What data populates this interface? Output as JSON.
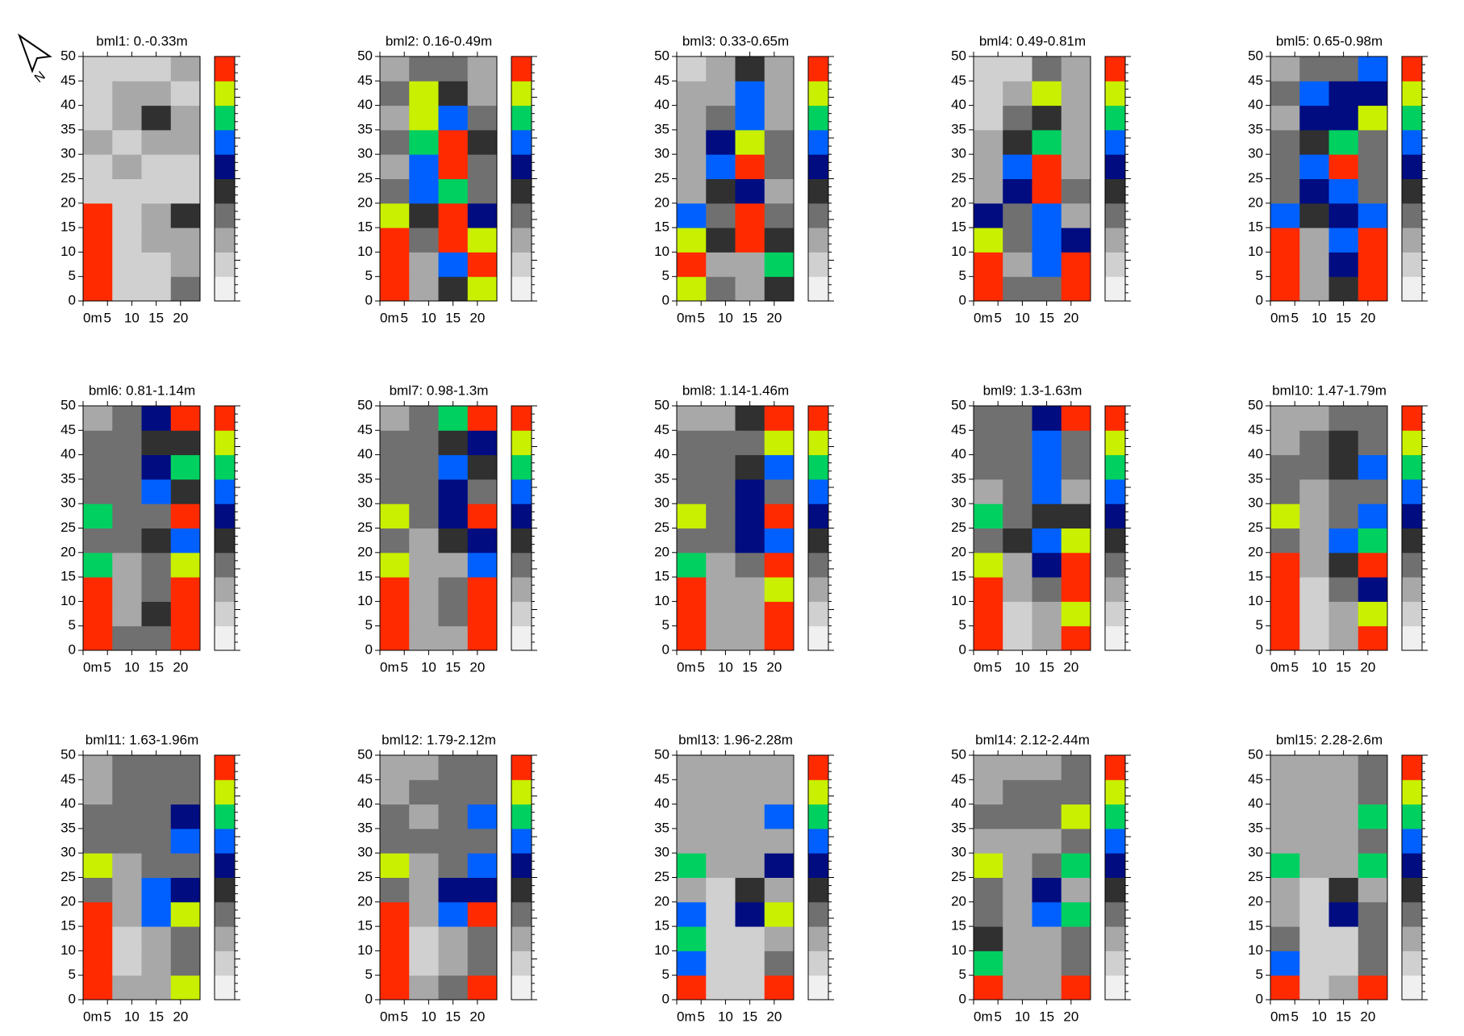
{
  "north_label": "N",
  "colorscale": [
    "#f0f0f0",
    "#d0d0d0",
    "#a8a8a8",
    "#707070",
    "#303030",
    "#000c80",
    "#0060ff",
    "#00d060",
    "#c8f000",
    "#ff2a00"
  ],
  "chart_data": [
    {
      "type": "heatmap",
      "title": "bml1: 0.-0.33m",
      "xlim": [
        0,
        24
      ],
      "ylim": [
        0,
        50
      ],
      "xticks": [
        {
          "value": 0,
          "label": "0m"
        },
        5,
        10,
        15,
        20
      ],
      "yticks": [
        0,
        5,
        10,
        15,
        20,
        25,
        30,
        35,
        40,
        45,
        50
      ],
      "z": [
        [
          9,
          1,
          1,
          3
        ],
        [
          9,
          1,
          1,
          2
        ],
        [
          9,
          1,
          2,
          2
        ],
        [
          9,
          1,
          2,
          4
        ],
        [
          1,
          1,
          1,
          1
        ],
        [
          1,
          2,
          1,
          1
        ],
        [
          2,
          1,
          2,
          2
        ],
        [
          1,
          2,
          4,
          2
        ],
        [
          1,
          2,
          2,
          1
        ],
        [
          1,
          1,
          1,
          2
        ]
      ]
    },
    {
      "type": "heatmap",
      "title": "bml2: 0.16-0.49m",
      "xlim": [
        0,
        24
      ],
      "ylim": [
        0,
        50
      ],
      "xticks": [
        {
          "value": 0,
          "label": "0m"
        },
        5,
        10,
        15,
        20
      ],
      "yticks": [
        0,
        5,
        10,
        15,
        20,
        25,
        30,
        35,
        40,
        45,
        50
      ],
      "z": [
        [
          9,
          2,
          4,
          8
        ],
        [
          9,
          2,
          6,
          9
        ],
        [
          9,
          3,
          9,
          8
        ],
        [
          8,
          4,
          9,
          5
        ],
        [
          3,
          6,
          7,
          3
        ],
        [
          2,
          6,
          9,
          3
        ],
        [
          3,
          7,
          9,
          4
        ],
        [
          2,
          8,
          6,
          3
        ],
        [
          3,
          8,
          4,
          2
        ],
        [
          2,
          3,
          3,
          2
        ]
      ]
    },
    {
      "type": "heatmap",
      "title": "bml3: 0.33-0.65m",
      "xlim": [
        0,
        24
      ],
      "ylim": [
        0,
        50
      ],
      "xticks": [
        {
          "value": 0,
          "label": "0m"
        },
        5,
        10,
        15,
        20
      ],
      "yticks": [
        0,
        5,
        10,
        15,
        20,
        25,
        30,
        35,
        40,
        45,
        50
      ],
      "z": [
        [
          8,
          3,
          2,
          4
        ],
        [
          9,
          2,
          2,
          7
        ],
        [
          8,
          4,
          9,
          4
        ],
        [
          6,
          3,
          9,
          3
        ],
        [
          2,
          4,
          5,
          2
        ],
        [
          2,
          6,
          9,
          3
        ],
        [
          2,
          5,
          8,
          3
        ],
        [
          2,
          3,
          6,
          2
        ],
        [
          2,
          2,
          6,
          2
        ],
        [
          1,
          2,
          4,
          2
        ]
      ]
    },
    {
      "type": "heatmap",
      "title": "bml4: 0.49-0.81m",
      "xlim": [
        0,
        24
      ],
      "ylim": [
        0,
        50
      ],
      "xticks": [
        {
          "value": 0,
          "label": "0m"
        },
        5,
        10,
        15,
        20
      ],
      "yticks": [
        0,
        5,
        10,
        15,
        20,
        25,
        30,
        35,
        40,
        45,
        50
      ],
      "z": [
        [
          9,
          3,
          3,
          9
        ],
        [
          9,
          2,
          6,
          9
        ],
        [
          8,
          3,
          6,
          5
        ],
        [
          5,
          3,
          6,
          2
        ],
        [
          2,
          5,
          9,
          3
        ],
        [
          2,
          6,
          9,
          2
        ],
        [
          2,
          4,
          7,
          2
        ],
        [
          1,
          3,
          4,
          2
        ],
        [
          1,
          2,
          8,
          2
        ],
        [
          1,
          1,
          3,
          2
        ]
      ]
    },
    {
      "type": "heatmap",
      "title": "bml5: 0.65-0.98m",
      "xlim": [
        0,
        24
      ],
      "ylim": [
        0,
        50
      ],
      "xticks": [
        {
          "value": 0,
          "label": "0m"
        },
        5,
        10,
        15,
        20
      ],
      "yticks": [
        0,
        5,
        10,
        15,
        20,
        25,
        30,
        35,
        40,
        45,
        50
      ],
      "z": [
        [
          9,
          2,
          4,
          9
        ],
        [
          9,
          2,
          5,
          9
        ],
        [
          9,
          2,
          6,
          9
        ],
        [
          6,
          4,
          5,
          6
        ],
        [
          3,
          5,
          6,
          3
        ],
        [
          3,
          6,
          9,
          3
        ],
        [
          3,
          4,
          7,
          3
        ],
        [
          2,
          5,
          5,
          8
        ],
        [
          3,
          6,
          5,
          5
        ],
        [
          2,
          3,
          3,
          6
        ]
      ]
    },
    {
      "type": "heatmap",
      "title": "bml6: 0.81-1.14m",
      "xlim": [
        0,
        24
      ],
      "ylim": [
        0,
        50
      ],
      "xticks": [
        {
          "value": 0,
          "label": "0m"
        },
        5,
        10,
        15,
        20
      ],
      "yticks": [
        0,
        5,
        10,
        15,
        20,
        25,
        30,
        35,
        40,
        45,
        50
      ],
      "z": [
        [
          9,
          3,
          3,
          9
        ],
        [
          9,
          2,
          4,
          9
        ],
        [
          9,
          2,
          3,
          9
        ],
        [
          7,
          2,
          3,
          8
        ],
        [
          3,
          3,
          4,
          6
        ],
        [
          7,
          3,
          3,
          9
        ],
        [
          3,
          3,
          6,
          4
        ],
        [
          3,
          3,
          5,
          7
        ],
        [
          3,
          3,
          4,
          4
        ],
        [
          2,
          3,
          5,
          9
        ]
      ]
    },
    {
      "type": "heatmap",
      "title": "bml7: 0.98-1.3m",
      "xlim": [
        0,
        24
      ],
      "ylim": [
        0,
        50
      ],
      "xticks": [
        {
          "value": 0,
          "label": "0m"
        },
        5,
        10,
        15,
        20
      ],
      "yticks": [
        0,
        5,
        10,
        15,
        20,
        25,
        30,
        35,
        40,
        45,
        50
      ],
      "z": [
        [
          9,
          2,
          2,
          9
        ],
        [
          9,
          2,
          3,
          9
        ],
        [
          9,
          2,
          3,
          9
        ],
        [
          8,
          2,
          2,
          6
        ],
        [
          3,
          2,
          4,
          5
        ],
        [
          8,
          3,
          5,
          9
        ],
        [
          3,
          3,
          5,
          3
        ],
        [
          3,
          3,
          6,
          4
        ],
        [
          3,
          3,
          4,
          5
        ],
        [
          2,
          3,
          7,
          9
        ]
      ]
    },
    {
      "type": "heatmap",
      "title": "bml8: 1.14-1.46m",
      "xlim": [
        0,
        24
      ],
      "ylim": [
        0,
        50
      ],
      "xticks": [
        {
          "value": 0,
          "label": "0m"
        },
        5,
        10,
        15,
        20
      ],
      "yticks": [
        0,
        5,
        10,
        15,
        20,
        25,
        30,
        35,
        40,
        45,
        50
      ],
      "z": [
        [
          9,
          2,
          2,
          9
        ],
        [
          9,
          2,
          2,
          9
        ],
        [
          9,
          2,
          2,
          8
        ],
        [
          7,
          2,
          3,
          9
        ],
        [
          3,
          3,
          5,
          6
        ],
        [
          8,
          3,
          5,
          9
        ],
        [
          3,
          3,
          5,
          3
        ],
        [
          3,
          3,
          4,
          6
        ],
        [
          3,
          3,
          3,
          8
        ],
        [
          2,
          2,
          4,
          9
        ]
      ]
    },
    {
      "type": "heatmap",
      "title": "bml9: 1.3-1.63m",
      "xlim": [
        0,
        24
      ],
      "ylim": [
        0,
        50
      ],
      "xticks": [
        {
          "value": 0,
          "label": "0m"
        },
        5,
        10,
        15,
        20
      ],
      "yticks": [
        0,
        5,
        10,
        15,
        20,
        25,
        30,
        35,
        40,
        45,
        50
      ],
      "z": [
        [
          9,
          1,
          2,
          9
        ],
        [
          9,
          1,
          2,
          8
        ],
        [
          9,
          2,
          3,
          9
        ],
        [
          8,
          2,
          5,
          9
        ],
        [
          3,
          4,
          6,
          8
        ],
        [
          7,
          3,
          4,
          4
        ],
        [
          2,
          3,
          6,
          2
        ],
        [
          3,
          3,
          6,
          3
        ],
        [
          3,
          3,
          6,
          3
        ],
        [
          3,
          3,
          5,
          9
        ]
      ]
    },
    {
      "type": "heatmap",
      "title": "bml10: 1.47-1.79m",
      "xlim": [
        0,
        24
      ],
      "ylim": [
        0,
        50
      ],
      "xticks": [
        {
          "value": 0,
          "label": "0m"
        },
        5,
        10,
        15,
        20
      ],
      "yticks": [
        0,
        5,
        10,
        15,
        20,
        25,
        30,
        35,
        40,
        45,
        50
      ],
      "z": [
        [
          9,
          1,
          2,
          9
        ],
        [
          9,
          1,
          2,
          8
        ],
        [
          9,
          1,
          3,
          5
        ],
        [
          9,
          2,
          4,
          9
        ],
        [
          3,
          2,
          6,
          7
        ],
        [
          8,
          2,
          3,
          6
        ],
        [
          3,
          2,
          3,
          3
        ],
        [
          3,
          3,
          4,
          6
        ],
        [
          2,
          3,
          4,
          3
        ],
        [
          2,
          2,
          3,
          3
        ]
      ]
    },
    {
      "type": "heatmap",
      "title": "bml11: 1.63-1.96m",
      "xlim": [
        0,
        24
      ],
      "ylim": [
        0,
        50
      ],
      "xticks": [
        {
          "value": 0,
          "label": "0m"
        },
        5,
        10,
        15,
        20
      ],
      "yticks": [
        0,
        5,
        10,
        15,
        20,
        25,
        30,
        35,
        40,
        45,
        50
      ],
      "z": [
        [
          9,
          2,
          2,
          8
        ],
        [
          9,
          1,
          2,
          3
        ],
        [
          9,
          1,
          2,
          3
        ],
        [
          9,
          2,
          6,
          8
        ],
        [
          3,
          2,
          6,
          5
        ],
        [
          8,
          2,
          3,
          3
        ],
        [
          3,
          3,
          3,
          6
        ],
        [
          3,
          3,
          3,
          5
        ],
        [
          2,
          3,
          3,
          3
        ],
        [
          2,
          3,
          3,
          3
        ]
      ]
    },
    {
      "type": "heatmap",
      "title": "bml12: 1.79-2.12m",
      "xlim": [
        0,
        24
      ],
      "ylim": [
        0,
        50
      ],
      "xticks": [
        {
          "value": 0,
          "label": "0m"
        },
        5,
        10,
        15,
        20
      ],
      "yticks": [
        0,
        5,
        10,
        15,
        20,
        25,
        30,
        35,
        40,
        45,
        50
      ],
      "z": [
        [
          9,
          2,
          3,
          9
        ],
        [
          9,
          1,
          2,
          3
        ],
        [
          9,
          1,
          2,
          3
        ],
        [
          9,
          2,
          6,
          9
        ],
        [
          3,
          2,
          5,
          5
        ],
        [
          8,
          2,
          3,
          6
        ],
        [
          3,
          3,
          3,
          3
        ],
        [
          3,
          2,
          3,
          6
        ],
        [
          2,
          3,
          3,
          3
        ],
        [
          2,
          2,
          3,
          3
        ]
      ]
    },
    {
      "type": "heatmap",
      "title": "bml13: 1.96-2.28m",
      "xlim": [
        0,
        24
      ],
      "ylim": [
        0,
        50
      ],
      "xticks": [
        {
          "value": 0,
          "label": "0m"
        },
        5,
        10,
        15,
        20
      ],
      "yticks": [
        0,
        5,
        10,
        15,
        20,
        25,
        30,
        35,
        40,
        45,
        50
      ],
      "z": [
        [
          9,
          1,
          1,
          9
        ],
        [
          6,
          1,
          1,
          3
        ],
        [
          7,
          1,
          1,
          2
        ],
        [
          6,
          1,
          5,
          8
        ],
        [
          2,
          1,
          4,
          2
        ],
        [
          7,
          2,
          2,
          5
        ],
        [
          2,
          2,
          2,
          2
        ],
        [
          2,
          2,
          2,
          6
        ],
        [
          2,
          2,
          2,
          2
        ],
        [
          2,
          2,
          2,
          2
        ]
      ]
    },
    {
      "type": "heatmap",
      "title": "bml14: 2.12-2.44m",
      "xlim": [
        0,
        24
      ],
      "ylim": [
        0,
        50
      ],
      "xticks": [
        {
          "value": 0,
          "label": "0m"
        },
        5,
        10,
        15,
        20
      ],
      "yticks": [
        0,
        5,
        10,
        15,
        20,
        25,
        30,
        35,
        40,
        45,
        50
      ],
      "z": [
        [
          9,
          2,
          2,
          9
        ],
        [
          7,
          2,
          2,
          3
        ],
        [
          4,
          2,
          2,
          3
        ],
        [
          3,
          2,
          6,
          7
        ],
        [
          3,
          2,
          5,
          2
        ],
        [
          8,
          2,
          3,
          7
        ],
        [
          2,
          2,
          2,
          3
        ],
        [
          3,
          3,
          3,
          8
        ],
        [
          2,
          3,
          3,
          3
        ],
        [
          2,
          2,
          2,
          3
        ]
      ]
    },
    {
      "type": "heatmap",
      "title": "bml15: 2.28-2.6m",
      "xlim": [
        0,
        24
      ],
      "ylim": [
        0,
        50
      ],
      "xticks": [
        {
          "value": 0,
          "label": "0m"
        },
        5,
        10,
        15,
        20
      ],
      "yticks": [
        0,
        5,
        10,
        15,
        20,
        25,
        30,
        35,
        40,
        45,
        50
      ],
      "z": [
        [
          9,
          1,
          2,
          9
        ],
        [
          6,
          1,
          1,
          3
        ],
        [
          3,
          1,
          1,
          3
        ],
        [
          2,
          1,
          5,
          3
        ],
        [
          2,
          1,
          4,
          2
        ],
        [
          7,
          2,
          2,
          7
        ],
        [
          2,
          2,
          2,
          3
        ],
        [
          2,
          2,
          2,
          7
        ],
        [
          2,
          2,
          2,
          3
        ],
        [
          2,
          2,
          2,
          3
        ]
      ]
    }
  ]
}
